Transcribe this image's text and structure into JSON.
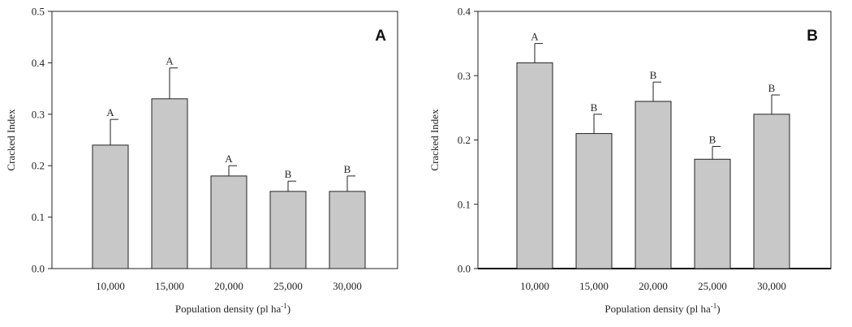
{
  "chart_data": [
    {
      "type": "bar",
      "panel_label": "A",
      "categories": [
        "10,000",
        "15,000",
        "20,000",
        "25,000",
        "30,000"
      ],
      "values": [
        0.24,
        0.33,
        0.18,
        0.15,
        0.15
      ],
      "error_upper": [
        0.05,
        0.06,
        0.02,
        0.02,
        0.03
      ],
      "significance": [
        "A",
        "A",
        "A",
        "B",
        "B"
      ],
      "xlabel": "Population density (pl ha",
      "xlabel_superscript": "-1",
      "xlabel_suffix": ")",
      "ylabel": "Cracked Index",
      "ylim": [
        0,
        0.5
      ],
      "yticks": [
        "0.0",
        "0.1",
        "0.2",
        "0.3",
        "0.4",
        "0.5"
      ],
      "bar_color": "#c8c8c8",
      "grid": false
    },
    {
      "type": "bar",
      "panel_label": "B",
      "categories": [
        "10,000",
        "15,000",
        "20,000",
        "25,000",
        "30,000"
      ],
      "values": [
        0.32,
        0.21,
        0.26,
        0.17,
        0.24
      ],
      "error_upper": [
        0.03,
        0.03,
        0.03,
        0.02,
        0.03
      ],
      "significance": [
        "A",
        "B",
        "B",
        "B",
        "B"
      ],
      "xlabel": "Population density (pl ha",
      "xlabel_superscript": "-1",
      "xlabel_suffix": ")",
      "ylabel": "Cracked Index",
      "ylim": [
        0,
        0.4
      ],
      "yticks": [
        "0.0",
        "0.1",
        "0.2",
        "0.3",
        "0.4"
      ],
      "bar_color": "#c8c8c8",
      "grid": false
    }
  ]
}
